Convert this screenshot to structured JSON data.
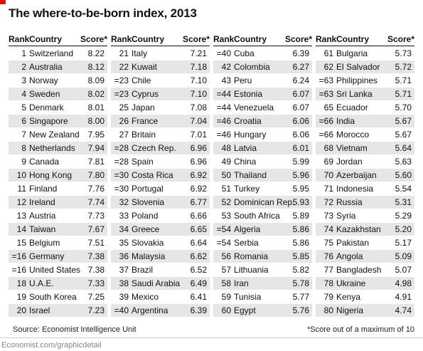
{
  "title": "The where-to-be-born index, 2013",
  "headers": {
    "rank": "Rank",
    "country": "Country",
    "score": "Score*"
  },
  "columns": [
    [
      {
        "rank": "1",
        "country": "Switzerland",
        "score": "8.22"
      },
      {
        "rank": "2",
        "country": "Australia",
        "score": "8.12"
      },
      {
        "rank": "3",
        "country": "Norway",
        "score": "8.09"
      },
      {
        "rank": "4",
        "country": "Sweden",
        "score": "8.02"
      },
      {
        "rank": "5",
        "country": "Denmark",
        "score": "8.01"
      },
      {
        "rank": "6",
        "country": "Singapore",
        "score": "8.00"
      },
      {
        "rank": "7",
        "country": "New Zealand",
        "score": "7.95"
      },
      {
        "rank": "8",
        "country": "Netherlands",
        "score": "7.94"
      },
      {
        "rank": "9",
        "country": "Canada",
        "score": "7.81"
      },
      {
        "rank": "10",
        "country": "Hong Kong",
        "score": "7.80"
      },
      {
        "rank": "11",
        "country": "Finland",
        "score": "7.76"
      },
      {
        "rank": "12",
        "country": "Ireland",
        "score": "7.74"
      },
      {
        "rank": "13",
        "country": "Austria",
        "score": "7.73"
      },
      {
        "rank": "14",
        "country": "Taiwan",
        "score": "7.67"
      },
      {
        "rank": "15",
        "country": "Belgium",
        "score": "7.51"
      },
      {
        "rank": "=16",
        "country": "Germany",
        "score": "7.38"
      },
      {
        "rank": "=16",
        "country": "United States",
        "score": "7.38"
      },
      {
        "rank": "18",
        "country": "U.A.E.",
        "score": "7.33"
      },
      {
        "rank": "19",
        "country": "South Korea",
        "score": "7.25"
      },
      {
        "rank": "20",
        "country": "Israel",
        "score": "7.23"
      }
    ],
    [
      {
        "rank": "21",
        "country": "Italy",
        "score": "7.21"
      },
      {
        "rank": "22",
        "country": "Kuwait",
        "score": "7.18"
      },
      {
        "rank": "=23",
        "country": "Chile",
        "score": "7.10"
      },
      {
        "rank": "=23",
        "country": "Cyprus",
        "score": "7.10"
      },
      {
        "rank": "25",
        "country": "Japan",
        "score": "7.08"
      },
      {
        "rank": "26",
        "country": "France",
        "score": "7.04"
      },
      {
        "rank": "27",
        "country": "Britain",
        "score": "7.01"
      },
      {
        "rank": "=28",
        "country": "Czech Rep.",
        "score": "6.96"
      },
      {
        "rank": "=28",
        "country": "Spain",
        "score": "6.96"
      },
      {
        "rank": "=30",
        "country": "Costa Rica",
        "score": "6.92"
      },
      {
        "rank": "=30",
        "country": "Portugal",
        "score": "6.92"
      },
      {
        "rank": "32",
        "country": "Slovenia",
        "score": "6.77"
      },
      {
        "rank": "33",
        "country": "Poland",
        "score": "6.66"
      },
      {
        "rank": "34",
        "country": "Greece",
        "score": "6.65"
      },
      {
        "rank": "35",
        "country": "Slovakia",
        "score": "6.64"
      },
      {
        "rank": "36",
        "country": "Malaysia",
        "score": "6.62"
      },
      {
        "rank": "37",
        "country": "Brazil",
        "score": "6.52"
      },
      {
        "rank": "38",
        "country": "Saudi Arabia",
        "score": "6.49"
      },
      {
        "rank": "39",
        "country": "Mexico",
        "score": "6.41"
      },
      {
        "rank": "=40",
        "country": "Argentina",
        "score": "6.39"
      }
    ],
    [
      {
        "rank": "=40",
        "country": "Cuba",
        "score": "6.39"
      },
      {
        "rank": "42",
        "country": "Colombia",
        "score": "6.27"
      },
      {
        "rank": "43",
        "country": "Peru",
        "score": "6.24"
      },
      {
        "rank": "=44",
        "country": "Estonia",
        "score": "6.07"
      },
      {
        "rank": "=44",
        "country": "Venezuela",
        "score": "6.07"
      },
      {
        "rank": "=46",
        "country": "Croatia",
        "score": "6.06"
      },
      {
        "rank": "=46",
        "country": "Hungary",
        "score": "6.06"
      },
      {
        "rank": "48",
        "country": "Latvia",
        "score": "6.01"
      },
      {
        "rank": "49",
        "country": "China",
        "score": "5.99"
      },
      {
        "rank": "50",
        "country": "Thailand",
        "score": "5.96"
      },
      {
        "rank": "51",
        "country": "Turkey",
        "score": "5.95"
      },
      {
        "rank": "52",
        "country": "Dominican Rep.",
        "score": "5.93"
      },
      {
        "rank": "53",
        "country": "South Africa",
        "score": "5.89"
      },
      {
        "rank": "=54",
        "country": "Algeria",
        "score": "5.86"
      },
      {
        "rank": "=54",
        "country": "Serbia",
        "score": "5.86"
      },
      {
        "rank": "56",
        "country": "Romania",
        "score": "5.85"
      },
      {
        "rank": "57",
        "country": "Lithuania",
        "score": "5.82"
      },
      {
        "rank": "58",
        "country": "Iran",
        "score": "5.78"
      },
      {
        "rank": "59",
        "country": "Tunisia",
        "score": "5.77"
      },
      {
        "rank": "60",
        "country": "Egypt",
        "score": "5.76"
      }
    ],
    [
      {
        "rank": "61",
        "country": "Bulgaria",
        "score": "5.73"
      },
      {
        "rank": "62",
        "country": "El Salvador",
        "score": "5.72"
      },
      {
        "rank": "=63",
        "country": "Philippines",
        "score": "5.71"
      },
      {
        "rank": "=63",
        "country": "Sri Lanka",
        "score": "5.71"
      },
      {
        "rank": "65",
        "country": "Ecuador",
        "score": "5.70"
      },
      {
        "rank": "=66",
        "country": "India",
        "score": "5.67"
      },
      {
        "rank": "=66",
        "country": "Morocco",
        "score": "5.67"
      },
      {
        "rank": "68",
        "country": "Vietnam",
        "score": "5.64"
      },
      {
        "rank": "69",
        "country": "Jordan",
        "score": "5.63"
      },
      {
        "rank": "70",
        "country": "Azerbaijan",
        "score": "5.60"
      },
      {
        "rank": "71",
        "country": "Indonesia",
        "score": "5.54"
      },
      {
        "rank": "72",
        "country": "Russia",
        "score": "5.31"
      },
      {
        "rank": "73",
        "country": "Syria",
        "score": "5.29"
      },
      {
        "rank": "74",
        "country": "Kazakhstan",
        "score": "5.20"
      },
      {
        "rank": "75",
        "country": "Pakistan",
        "score": "5.17"
      },
      {
        "rank": "76",
        "country": "Angola",
        "score": "5.09"
      },
      {
        "rank": "77",
        "country": "Bangladesh",
        "score": "5.07"
      },
      {
        "rank": "78",
        "country": "Ukraine",
        "score": "4.98"
      },
      {
        "rank": "79",
        "country": "Kenya",
        "score": "4.91"
      },
      {
        "rank": "80",
        "country": "Nigeria",
        "score": "4.74"
      }
    ]
  ],
  "source": "Source: Economist Intelligence Unit",
  "footnote": "*Score out of a maximum of 10",
  "credit": "Economist.com/graphicdetail",
  "colors": {
    "accent": "#e3120b",
    "row_shade": "#e6e6e6"
  }
}
